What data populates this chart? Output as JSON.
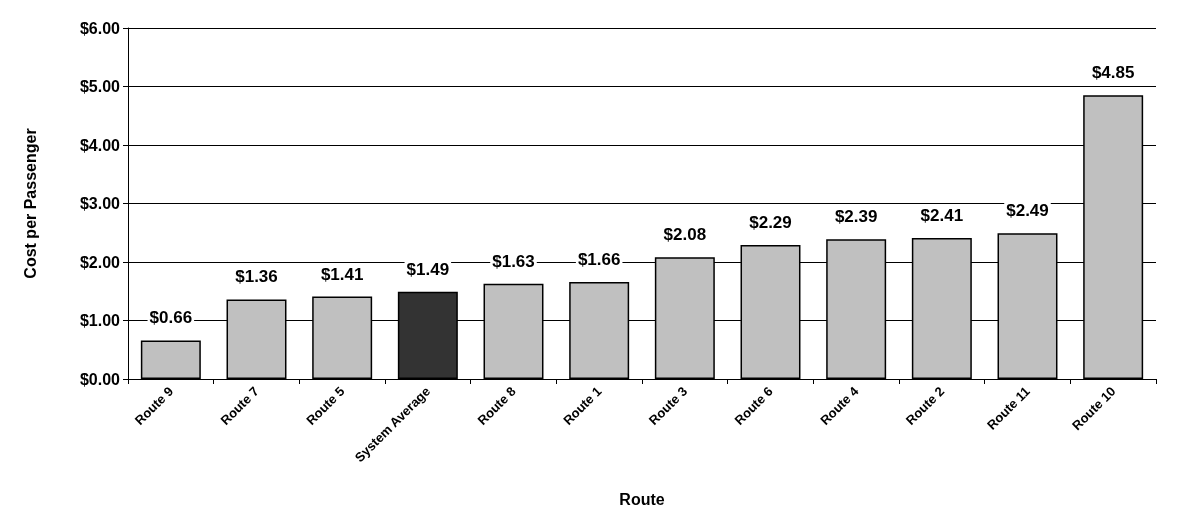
{
  "chart_data": {
    "type": "bar",
    "xlabel": "Route",
    "ylabel": "Cost per Passenger",
    "categories": [
      "Route 9",
      "Route 7",
      "Route 5",
      "System Average",
      "Route 8",
      "Route 1",
      "Route 3",
      "Route 6",
      "Route 4",
      "Route 2",
      "Route 11",
      "Route 10"
    ],
    "values": [
      0.66,
      1.36,
      1.41,
      1.49,
      1.63,
      1.66,
      2.08,
      2.29,
      2.39,
      2.41,
      2.49,
      4.85
    ],
    "value_labels": [
      "$0.66",
      "$1.36",
      "$1.41",
      "$1.49",
      "$1.63",
      "$1.66",
      "$2.08",
      "$2.29",
      "$2.39",
      "$2.41",
      "$2.49",
      "$4.85"
    ],
    "colors": [
      "#c0c0c0",
      "#c0c0c0",
      "#c0c0c0",
      "#333333",
      "#c0c0c0",
      "#c0c0c0",
      "#c0c0c0",
      "#c0c0c0",
      "#c0c0c0",
      "#c0c0c0",
      "#c0c0c0",
      "#c0c0c0"
    ],
    "ylim": [
      0,
      6
    ],
    "yticks": [
      {
        "value": 0,
        "label": "$0.00"
      },
      {
        "value": 1,
        "label": "$1.00"
      },
      {
        "value": 2,
        "label": "$2.00"
      },
      {
        "value": 3,
        "label": "$3.00"
      },
      {
        "value": 4,
        "label": "$4.00"
      },
      {
        "value": 5,
        "label": "$5.00"
      },
      {
        "value": 6,
        "label": "$6.00"
      }
    ],
    "grid": "y"
  }
}
